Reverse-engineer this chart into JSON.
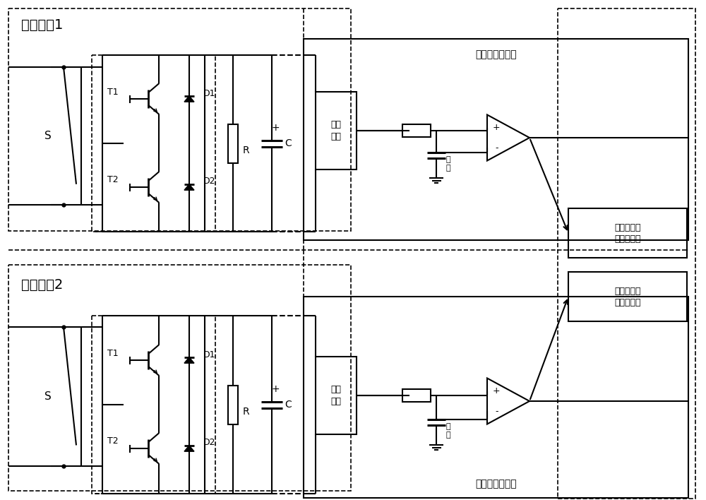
{
  "bg_color": "#ffffff",
  "line_color": "#000000",
  "fig_width": 10.0,
  "fig_height": 7.08,
  "title1": "功率模块1",
  "title2": "功率模块2",
  "label_T1": "T1",
  "label_T2": "T2",
  "label_D1": "D1",
  "label_D2": "D2",
  "label_R": "R",
  "label_C": "C",
  "label_S": "S",
  "label_plus": "+",
  "label_voltage": "电压\n采样",
  "label_threshold": "阈\n值",
  "label_overvoltage1": "过压检测电路板",
  "label_overvoltage2": "过压检测电路板",
  "label_driver1": "功率器件控\n制及驱动板",
  "label_driver2": "功率器件控\n制及驱动板"
}
